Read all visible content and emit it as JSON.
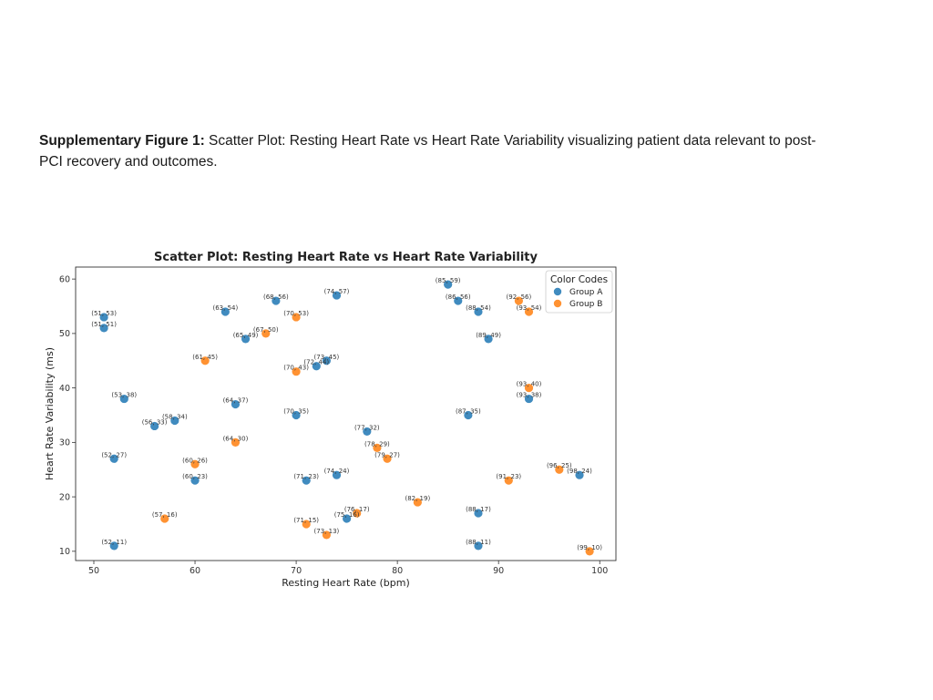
{
  "caption": {
    "label": "Supplementary Figure 1:",
    "text": " Scatter Plot: Resting Heart Rate vs Heart Rate Variability visualizing patient data relevant to post-PCI recovery and outcomes."
  },
  "colors": {
    "group_a": "#1f77b4",
    "group_b": "#ff7f0e"
  },
  "chart_data": {
    "type": "scatter",
    "title": "Scatter Plot: Resting Heart Rate vs Heart Rate Variability",
    "xlabel": "Resting Heart Rate (bpm)",
    "ylabel": "Heart Rate Variability (ms)",
    "xlim": [
      48.2,
      101.6
    ],
    "ylim": [
      8.3,
      62.2
    ],
    "xticks": [
      50,
      60,
      70,
      80,
      90,
      100
    ],
    "yticks": [
      10,
      20,
      30,
      40,
      50,
      60
    ],
    "grid": false,
    "legend": {
      "title": "Color Codes",
      "position": "top-right"
    },
    "series": [
      {
        "name": "Group A",
        "points": [
          [
            85,
            59
          ],
          [
            74,
            57
          ],
          [
            68,
            56
          ],
          [
            86,
            56
          ],
          [
            63,
            54
          ],
          [
            88,
            54
          ],
          [
            51,
            53
          ],
          [
            51,
            51
          ],
          [
            65,
            49
          ],
          [
            89,
            49
          ],
          [
            73,
            45
          ],
          [
            72,
            44
          ],
          [
            53,
            38
          ],
          [
            93,
            38
          ],
          [
            64,
            37
          ],
          [
            70,
            35
          ],
          [
            87,
            35
          ],
          [
            58,
            34
          ],
          [
            56,
            33
          ],
          [
            77,
            32
          ],
          [
            52,
            27
          ],
          [
            98,
            24
          ],
          [
            74,
            24
          ],
          [
            60,
            23
          ],
          [
            71,
            23
          ],
          [
            88,
            17
          ],
          [
            75,
            16
          ],
          [
            52,
            11
          ],
          [
            88,
            11
          ]
        ]
      },
      {
        "name": "Group B",
        "points": [
          [
            92,
            56
          ],
          [
            93,
            54
          ],
          [
            70,
            53
          ],
          [
            67,
            50
          ],
          [
            61,
            45
          ],
          [
            70,
            43
          ],
          [
            93,
            40
          ],
          [
            64,
            30
          ],
          [
            78,
            29
          ],
          [
            79,
            27
          ],
          [
            60,
            26
          ],
          [
            96,
            25
          ],
          [
            91,
            23
          ],
          [
            82,
            19
          ],
          [
            76,
            17
          ],
          [
            57,
            16
          ],
          [
            71,
            15
          ],
          [
            73,
            13
          ],
          [
            99,
            10
          ]
        ]
      }
    ]
  }
}
